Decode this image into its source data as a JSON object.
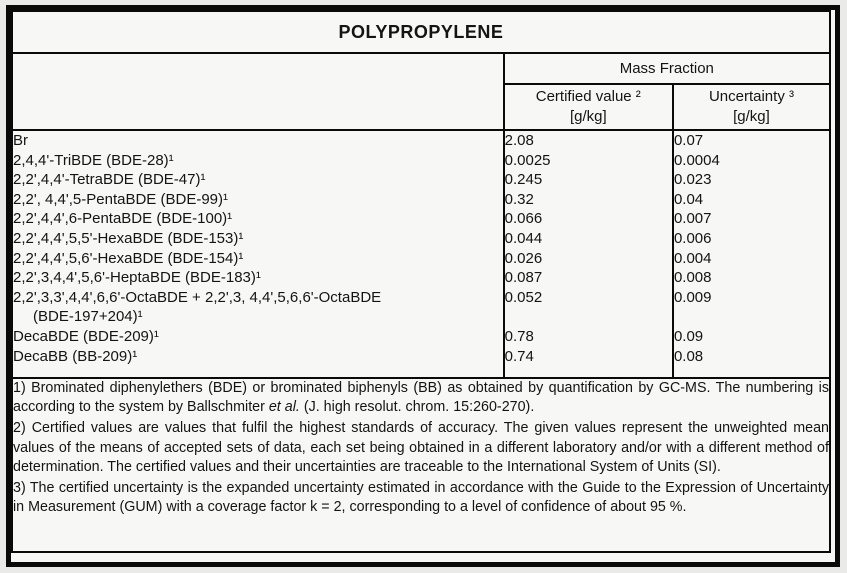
{
  "title": "POLYPROPYLENE",
  "table": {
    "group_header": "Mass Fraction",
    "columns": [
      {
        "label": "Certified value ²",
        "unit": "[g/kg]"
      },
      {
        "label": "Uncertainty ³",
        "unit": "[g/kg]"
      }
    ],
    "rows": [
      {
        "analyte": "Br",
        "certified": "2.08",
        "uncertainty": "0.07"
      },
      {
        "analyte": "2,4,4'-TriBDE (BDE-28)¹",
        "certified": "0.0025",
        "uncertainty": "0.0004"
      },
      {
        "analyte": "2,2',4,4'-TetraBDE (BDE-47)¹",
        "certified": "0.245",
        "uncertainty": "0.023"
      },
      {
        "analyte": "2,2', 4,4',5-PentaBDE (BDE-99)¹",
        "certified": "0.32",
        "uncertainty": "0.04"
      },
      {
        "analyte": "2,2',4,4',6-PentaBDE (BDE-100)¹",
        "certified": "0.066",
        "uncertainty": "0.007"
      },
      {
        "analyte": "2,2',4,4',5,5'-HexaBDE (BDE-153)¹",
        "certified": "0.044",
        "uncertainty": "0.006"
      },
      {
        "analyte": "2,2',4,4',5,6'-HexaBDE (BDE-154)¹",
        "certified": "0.026",
        "uncertainty": "0.004"
      },
      {
        "analyte": "2,2',3,4,4',5,6'-HeptaBDE (BDE-183)¹",
        "certified": "0.087",
        "uncertainty": "0.008"
      },
      {
        "analyte": "2,2',3,3',4,4',6,6'-OctaBDE + 2,2',3, 4,4',5,6,6'-OctaBDE",
        "analyte_line2": "(BDE-197+204)¹",
        "certified": "0.052",
        "uncertainty": "0.009"
      },
      {
        "analyte": "DecaBDE (BDE-209)¹",
        "certified": "0.78",
        "uncertainty": "0.09"
      },
      {
        "analyte": "DecaBB (BB-209)¹",
        "certified": "0.74",
        "uncertainty": "0.08"
      }
    ]
  },
  "footnotes": [
    {
      "parts": [
        {
          "text": "1) Brominated diphenylethers (BDE) or brominated biphenyls (BB) as obtained by quantification by GC-MS. The numbering is according to the system by Ballschmiter ",
          "italic": false
        },
        {
          "text": "et al.",
          "italic": true
        },
        {
          "text": " (J. high resolut. chrom. 15:260-270).",
          "italic": false
        }
      ]
    },
    {
      "parts": [
        {
          "text": "2) Certified values are values that fulfil the highest standards of accuracy. The given values represent the unweighted mean values of the means of accepted sets of data, each set being obtained in a different laboratory and/or with a different method of determination. The certified values and their uncertainties are traceable to the International System of Units (SI).",
          "italic": false
        }
      ]
    },
    {
      "parts": [
        {
          "text": "3) The certified uncertainty is the expanded uncertainty estimated in accordance with the Guide to the Expression of Uncertainty in Measurement (GUM) with a coverage factor k = 2, corresponding to a level of confidence of about 95 %.",
          "italic": false
        }
      ]
    }
  ],
  "colors": {
    "border": "#0a0a0a",
    "paper_background": "#f7f7f5",
    "page_background": "#eaeae8",
    "text": "#141414"
  }
}
